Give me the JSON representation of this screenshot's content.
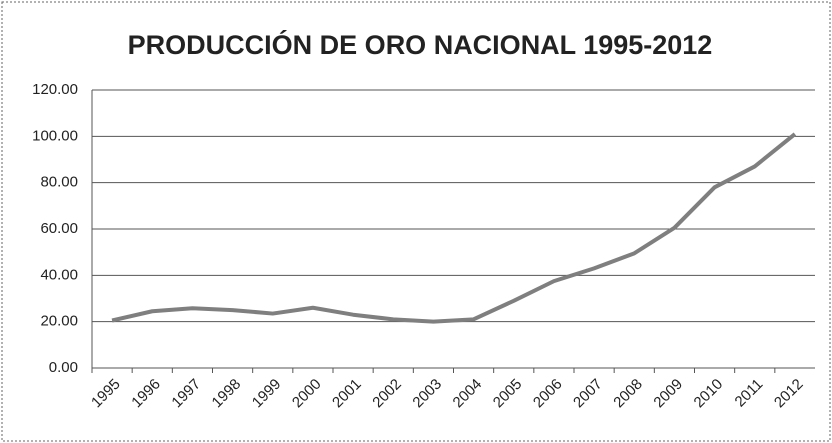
{
  "chart_data": {
    "type": "line",
    "title": "PRODUCCIÓN DE ORO NACIONAL 1995-2012",
    "categories": [
      "1995",
      "1996",
      "1997",
      "1998",
      "1999",
      "2000",
      "2001",
      "2002",
      "2003",
      "2004",
      "2005",
      "2006",
      "2007",
      "2008",
      "2009",
      "2010",
      "2011",
      "2012"
    ],
    "values": [
      20.5,
      24.5,
      25.8,
      25,
      23.5,
      26,
      23,
      21,
      20,
      21,
      29,
      37.5,
      43,
      49.5,
      60.5,
      78,
      87,
      101
    ],
    "color": "#7f7f7f",
    "ylim": [
      0,
      120
    ],
    "yticks": [
      {
        "value": 0,
        "label": "0.00"
      },
      {
        "value": 20,
        "label": "20.00"
      },
      {
        "value": 40,
        "label": "40.00"
      },
      {
        "value": 60,
        "label": "60.00"
      },
      {
        "value": 80,
        "label": "80.00"
      },
      {
        "value": 100,
        "label": "100.00"
      },
      {
        "value": 120,
        "label": "120.00"
      }
    ],
    "grid": true
  }
}
